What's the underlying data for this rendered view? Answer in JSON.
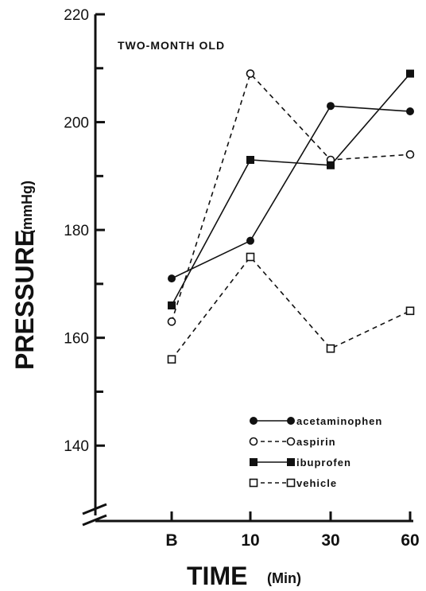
{
  "chart_data": {
    "type": "line",
    "annotation": "TWO-MONTH OLD",
    "xlabel": {
      "main": "TIME",
      "unit": "(Min)"
    },
    "ylabel": {
      "main": "PRESSURE",
      "unit": "(mmHg)"
    },
    "categories": [
      "B",
      "10",
      "30",
      "60"
    ],
    "ylim": [
      130,
      220
    ],
    "yticks": [
      140,
      160,
      180,
      200,
      220
    ],
    "yticks_minor": [
      150,
      170,
      190,
      210
    ],
    "axis_break": true,
    "grid": false,
    "legend_position": "bottom-right",
    "series": [
      {
        "name": "acetaminophen",
        "values": [
          171,
          178,
          203,
          202
        ],
        "line": "solid",
        "marker": "filled-circle"
      },
      {
        "name": "aspirin",
        "values": [
          163,
          209,
          193,
          194
        ],
        "line": "dashed",
        "marker": "open-circle"
      },
      {
        "name": "ibuprofen",
        "values": [
          166,
          193,
          192,
          209
        ],
        "line": "solid",
        "marker": "filled-square"
      },
      {
        "name": "vehicle",
        "values": [
          156,
          175,
          158,
          165
        ],
        "line": "dashed",
        "marker": "open-square"
      }
    ]
  }
}
